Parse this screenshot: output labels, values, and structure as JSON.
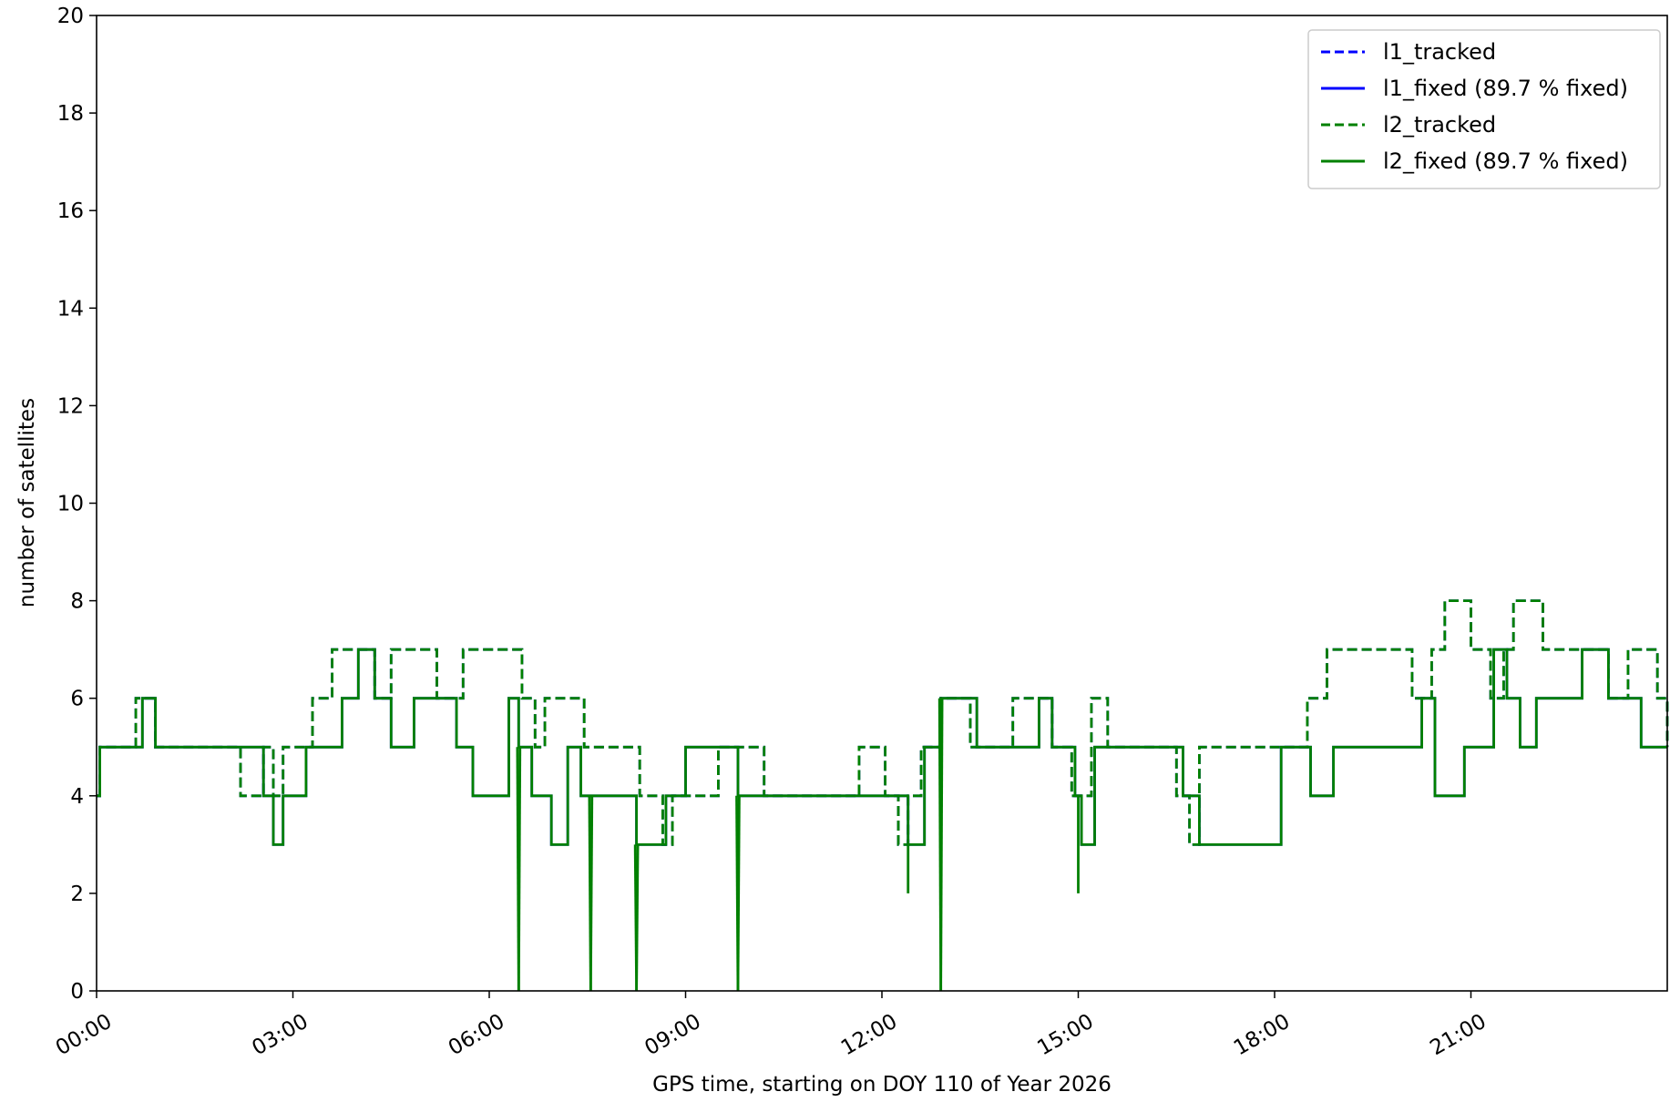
{
  "chart_data": {
    "type": "line",
    "title": "",
    "xlabel": "GPS time, starting on DOY 110 of Year 2026",
    "ylabel": "number of satellites",
    "xlim": [
      0,
      24
    ],
    "ylim": [
      0,
      20
    ],
    "x_ticks": [
      0,
      3,
      6,
      9,
      12,
      15,
      18,
      21
    ],
    "x_tick_labels": [
      "00:00",
      "03:00",
      "06:00",
      "09:00",
      "12:00",
      "15:00",
      "18:00",
      "21:00"
    ],
    "y_ticks": [
      0,
      2,
      4,
      6,
      8,
      10,
      12,
      14,
      16,
      18,
      20
    ],
    "y_tick_labels": [
      "0",
      "2",
      "4",
      "6",
      "8",
      "10",
      "12",
      "14",
      "16",
      "18",
      "20"
    ],
    "grid": false,
    "legend_position": "top-right",
    "x_unit": "hours since 00:00 GPS time",
    "series": [
      {
        "name": "l1_tracked",
        "color": "#0000ff",
        "style": "dashed",
        "x": [
          0,
          0.05,
          0.6,
          0.65,
          0.9,
          2.2,
          2.55,
          2.7,
          2.85,
          3.3,
          3.6,
          3.75,
          4.25,
          4.5,
          4.85,
          5.2,
          5.6,
          5.7,
          6.5,
          6.7,
          6.85,
          7.35,
          7.45,
          7.6,
          8.3,
          8.55,
          8.65,
          8.8,
          8.95,
          9.5,
          10.2,
          11.65,
          12.05,
          12.25,
          12.4,
          12.6,
          12.9,
          13.0,
          13.35,
          13.65,
          14.0,
          14.2,
          14.6,
          14.9,
          15.2,
          15.45,
          15.75,
          16.5,
          16.7,
          16.85,
          18.1,
          18.5,
          18.8,
          19.7,
          20.1,
          20.4,
          20.6,
          21.0,
          21.3,
          21.5,
          21.65,
          22.1,
          22.6,
          22.9,
          23.1,
          23.4,
          23.85,
          24
        ],
        "values": [
          4,
          5,
          6,
          6,
          5,
          4,
          5,
          4,
          5,
          6,
          7,
          7,
          6,
          7,
          7,
          6,
          7,
          7,
          6,
          5,
          6,
          6,
          5,
          5,
          4,
          4,
          3,
          4,
          4,
          5,
          4,
          5,
          4,
          3,
          4,
          5,
          6,
          6,
          5,
          5,
          6,
          6,
          5,
          4,
          6,
          5,
          5,
          4,
          3,
          5,
          5,
          6,
          7,
          7,
          6,
          7,
          8,
          7,
          6,
          7,
          8,
          7,
          7,
          7,
          6,
          7,
          6,
          5
        ]
      },
      {
        "name": "l1_fixed (89.7 % fixed)",
        "color": "#0000ff",
        "style": "solid",
        "x": [
          0,
          0.05,
          0.7,
          0.9,
          2.2,
          2.55,
          2.7,
          2.85,
          3.2,
          3.75,
          4.0,
          4.25,
          4.5,
          4.85,
          5.35,
          5.5,
          5.75,
          6.3,
          6.45,
          6.65,
          6.95,
          7.2,
          7.4,
          7.55,
          8.25,
          8.6,
          8.7,
          9.0,
          9.5,
          9.8,
          11.95,
          12.4,
          12.65,
          12.9,
          13.0,
          13.45,
          13.9,
          14.4,
          14.6,
          14.95,
          15.05,
          15.25,
          15.8,
          16.6,
          16.85,
          18.1,
          18.55,
          18.9,
          20.25,
          20.45,
          20.55,
          20.9,
          21.35,
          21.55,
          21.75,
          22.0,
          22.7,
          23.1,
          23.6,
          23.95
        ],
        "values": [
          4,
          5,
          6,
          5,
          5,
          4,
          3,
          4,
          5,
          6,
          7,
          6,
          5,
          6,
          6,
          5,
          4,
          6,
          5,
          4,
          3,
          5,
          4,
          4,
          3,
          3,
          4,
          5,
          5,
          4,
          4,
          3,
          5,
          6,
          6,
          5,
          5,
          6,
          5,
          4,
          3,
          5,
          5,
          4,
          3,
          5,
          4,
          5,
          6,
          4,
          4,
          5,
          7,
          6,
          5,
          6,
          7,
          6,
          5,
          5
        ]
      },
      {
        "name": "l2_tracked",
        "color": "#008000",
        "style": "dashed",
        "x": [
          0,
          0.05,
          0.6,
          0.65,
          0.9,
          2.2,
          2.55,
          2.7,
          2.85,
          3.3,
          3.6,
          3.75,
          4.25,
          4.5,
          4.85,
          5.2,
          5.6,
          5.7,
          6.5,
          6.7,
          6.85,
          7.35,
          7.45,
          7.6,
          8.3,
          8.55,
          8.65,
          8.8,
          8.95,
          9.5,
          10.2,
          11.65,
          12.05,
          12.25,
          12.4,
          12.6,
          12.9,
          13.0,
          13.35,
          13.65,
          14.0,
          14.2,
          14.6,
          14.9,
          15.2,
          15.45,
          15.75,
          16.5,
          16.7,
          16.85,
          18.1,
          18.5,
          18.8,
          19.7,
          20.1,
          20.4,
          20.6,
          21.0,
          21.3,
          21.5,
          21.65,
          22.1,
          22.6,
          22.9,
          23.1,
          23.4,
          23.85,
          24
        ],
        "values": [
          4,
          5,
          6,
          6,
          5,
          4,
          5,
          4,
          5,
          6,
          7,
          7,
          6,
          7,
          7,
          6,
          7,
          7,
          6,
          5,
          6,
          6,
          5,
          5,
          4,
          4,
          3,
          4,
          4,
          5,
          4,
          5,
          4,
          3,
          4,
          5,
          6,
          6,
          5,
          5,
          6,
          6,
          5,
          4,
          6,
          5,
          5,
          4,
          3,
          5,
          5,
          6,
          7,
          7,
          6,
          7,
          8,
          7,
          6,
          7,
          8,
          7,
          7,
          7,
          6,
          7,
          6,
          5
        ]
      },
      {
        "name": "l2_fixed (89.7 % fixed)",
        "color": "#008000",
        "style": "solid",
        "x": [
          0,
          0.05,
          0.7,
          0.9,
          2.2,
          2.55,
          2.7,
          2.85,
          3.2,
          3.75,
          4.0,
          4.25,
          4.5,
          4.85,
          5.35,
          5.5,
          5.75,
          6.3,
          6.45,
          6.65,
          6.95,
          7.2,
          7.4,
          7.55,
          8.25,
          8.6,
          8.7,
          9.0,
          9.5,
          9.8,
          11.95,
          12.4,
          12.65,
          12.9,
          13.0,
          13.45,
          13.9,
          14.4,
          14.6,
          14.95,
          15.05,
          15.25,
          15.8,
          16.6,
          16.85,
          18.1,
          18.55,
          18.9,
          20.25,
          20.45,
          20.55,
          20.9,
          21.35,
          21.55,
          21.75,
          22.0,
          22.7,
          23.1,
          23.6,
          23.95
        ],
        "values": [
          4,
          5,
          6,
          5,
          5,
          4,
          3,
          4,
          5,
          6,
          7,
          6,
          5,
          6,
          6,
          5,
          4,
          6,
          5,
          4,
          3,
          5,
          4,
          4,
          3,
          3,
          4,
          5,
          5,
          4,
          4,
          3,
          5,
          6,
          6,
          5,
          5,
          6,
          5,
          4,
          3,
          5,
          5,
          4,
          3,
          5,
          4,
          5,
          6,
          4,
          4,
          5,
          7,
          6,
          5,
          6,
          7,
          6,
          5,
          5
        ]
      }
    ],
    "spikes_to_zero": [
      6.45,
      7.55,
      8.25,
      9.8,
      12.9
    ],
    "spikes_to_two": [
      12.4,
      15.0
    ]
  },
  "legend": {
    "items": [
      {
        "label": "l1_tracked",
        "color": "#0000ff",
        "dash": "dashed"
      },
      {
        "label": "l1_fixed (89.7 % fixed)",
        "color": "#0000ff",
        "dash": "solid"
      },
      {
        "label": "l2_tracked",
        "color": "#008000",
        "dash": "dashed"
      },
      {
        "label": "l2_fixed (89.7 % fixed)",
        "color": "#008000",
        "dash": "solid"
      }
    ]
  }
}
